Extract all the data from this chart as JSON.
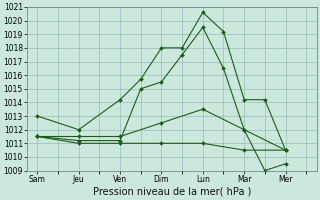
{
  "title": "",
  "xlabel": "Pression niveau de la mer( hPa )",
  "bg_color": "#cce8dd",
  "grid_color": "#99bbbb",
  "line_color": "#1a5c1a",
  "ylim": [
    1009,
    1021
  ],
  "yticks": [
    1009,
    1010,
    1011,
    1012,
    1013,
    1014,
    1015,
    1016,
    1017,
    1018,
    1019,
    1020,
    1021
  ],
  "x_labels": [
    "Sam",
    "Jeu",
    "Ven",
    "Dim",
    "Lun",
    "Mar",
    "Mer"
  ],
  "x_positions": [
    0,
    2,
    4,
    6,
    8,
    10,
    12
  ],
  "xlim": [
    -0.5,
    13.5
  ],
  "lines": [
    {
      "x": [
        0,
        2,
        4,
        5,
        6,
        7,
        8,
        9,
        10,
        11,
        12
      ],
      "y": [
        1013.0,
        1012.0,
        1014.2,
        1015.7,
        1018.0,
        1018.0,
        1020.6,
        1019.2,
        1014.2,
        1014.2,
        1010.5
      ]
    },
    {
      "x": [
        0,
        2,
        4,
        5,
        6,
        7,
        8,
        9,
        10,
        11,
        12
      ],
      "y": [
        1011.5,
        1011.2,
        1011.2,
        1015.0,
        1015.5,
        1017.5,
        1019.5,
        1016.5,
        1012.0,
        1009.0,
        1009.5
      ]
    },
    {
      "x": [
        0,
        2,
        4,
        6,
        8,
        10,
        12
      ],
      "y": [
        1011.5,
        1011.5,
        1011.5,
        1012.5,
        1013.5,
        1012.0,
        1010.5
      ]
    },
    {
      "x": [
        0,
        2,
        4,
        6,
        8,
        10,
        12
      ],
      "y": [
        1011.5,
        1011.0,
        1011.0,
        1011.0,
        1011.0,
        1010.5,
        1010.5
      ]
    }
  ],
  "tick_fontsize": 5.5,
  "label_fontsize": 7.0
}
